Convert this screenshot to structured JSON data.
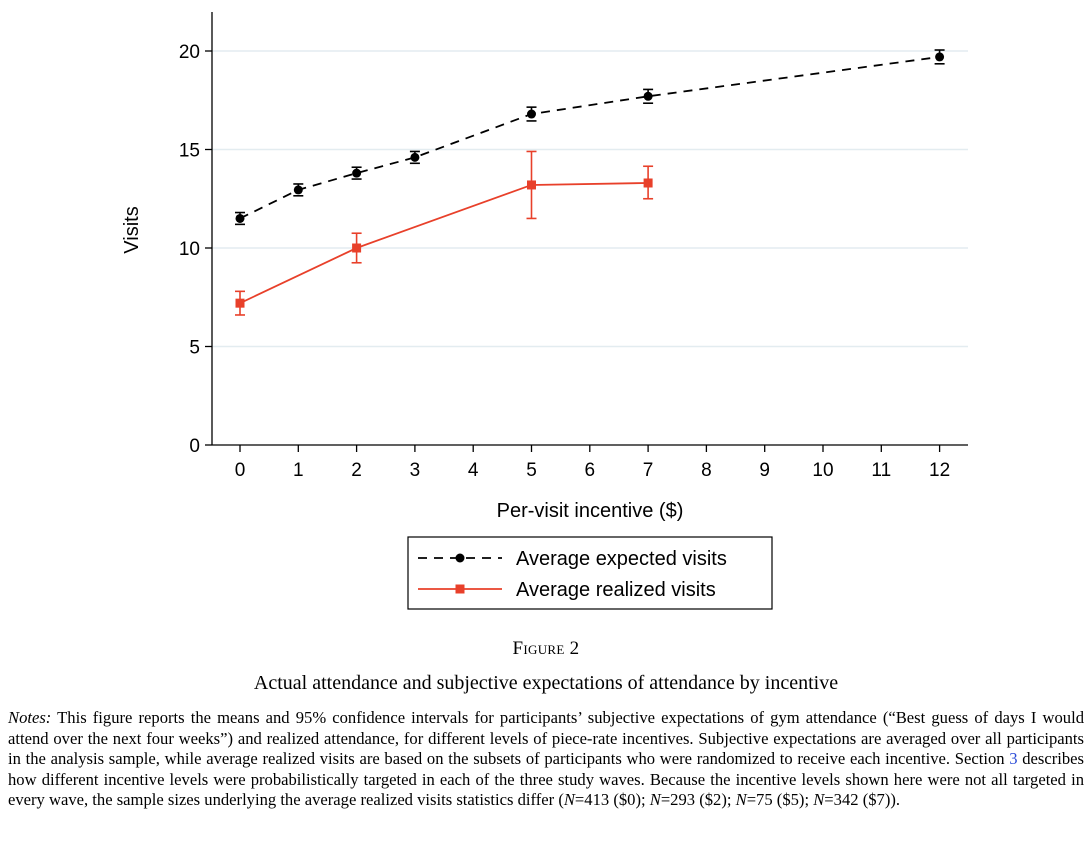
{
  "chart_data": {
    "type": "line",
    "xlabel": "Per-visit incentive ($)",
    "ylabel": "Visits",
    "xlim": [
      -0.5,
      12.5
    ],
    "ylim": [
      0,
      22
    ],
    "x_ticks": [
      0,
      1,
      2,
      3,
      4,
      5,
      6,
      7,
      8,
      9,
      10,
      11,
      12
    ],
    "y_ticks": [
      0,
      5,
      10,
      15,
      20
    ],
    "grid": "horizontal",
    "legend_position": "bottom",
    "series": [
      {
        "name": "Average expected visits",
        "style": "dashed",
        "marker": "circle",
        "color": "#000000",
        "points": [
          {
            "x": 0,
            "y": 11.5,
            "lo": 11.2,
            "hi": 11.8
          },
          {
            "x": 1,
            "y": 12.95,
            "lo": 12.65,
            "hi": 13.25
          },
          {
            "x": 2,
            "y": 13.8,
            "lo": 13.5,
            "hi": 14.1
          },
          {
            "x": 3,
            "y": 14.6,
            "lo": 14.3,
            "hi": 14.9
          },
          {
            "x": 5,
            "y": 16.8,
            "lo": 16.45,
            "hi": 17.15
          },
          {
            "x": 7,
            "y": 17.7,
            "lo": 17.35,
            "hi": 18.05
          },
          {
            "x": 12,
            "y": 19.7,
            "lo": 19.35,
            "hi": 20.05
          }
        ]
      },
      {
        "name": "Average realized visits",
        "style": "solid",
        "marker": "square",
        "color": "#e8402a",
        "points": [
          {
            "x": 0,
            "y": 7.2,
            "lo": 6.6,
            "hi": 7.8
          },
          {
            "x": 2,
            "y": 10.0,
            "lo": 9.25,
            "hi": 10.75
          },
          {
            "x": 5,
            "y": 13.2,
            "lo": 11.5,
            "hi": 14.9
          },
          {
            "x": 7,
            "y": 13.3,
            "lo": 12.5,
            "hi": 14.15
          }
        ]
      }
    ]
  },
  "figure_label": "Figure 2",
  "figure_title": "Actual attendance and subjective expectations of attendance by incentive",
  "notes": {
    "label": "Notes:",
    "text1": " This figure reports the means and 95% confidence intervals for participants’ subjective expectations of gym attendance (“Best guess of days I would attend over the next four weeks”) and realized attendance, for different levels of piece-rate incentives. Subjective expectations are averaged over all participants in the analysis sample, while average realized visits are based on the subsets of participants who were randomized to receive each incentive. Section ",
    "section_ref": "3",
    "text2": " describes how different incentive levels were probabilistically targeted in each of the three study waves. Because the incentive levels shown here were not all targeted in every wave, the sample sizes underlying the average realized visits statistics differ (",
    "n_symbol": "N",
    "n1": "=413 ($0); ",
    "n2": "=293 ($2); ",
    "n3": "=75 ($5); ",
    "n4": "=342 ($7))."
  }
}
